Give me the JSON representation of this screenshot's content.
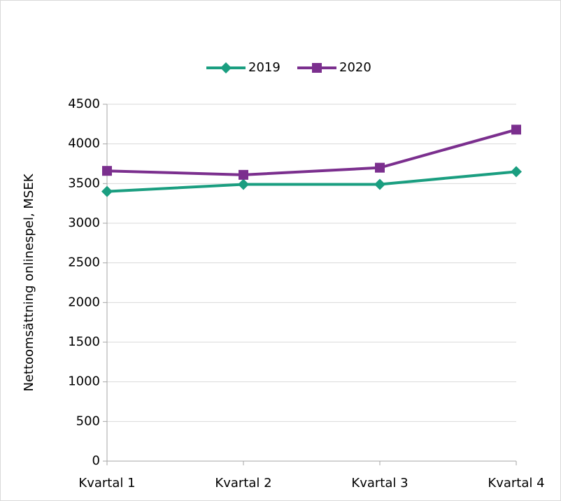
{
  "chart_data": {
    "type": "line",
    "categories": [
      "Kvartal 1",
      "Kvartal 2",
      "Kvartal 3",
      "Kvartal 4"
    ],
    "y_label": "Nettoomsättning onlinespel, MSEK",
    "series": [
      {
        "name": "2019",
        "color": "#1a9e80",
        "marker": "diamond",
        "values": [
          3400,
          3490,
          3490,
          3650
        ]
      },
      {
        "name": "2020",
        "color": "#7b2f8e",
        "marker": "square",
        "values": [
          3660,
          3610,
          3700,
          4180
        ]
      }
    ],
    "ylim": [
      0,
      4500
    ],
    "yticks": [
      0,
      500,
      1000,
      1500,
      2000,
      2500,
      3000,
      3500,
      4000,
      4500
    ],
    "grid": true,
    "legend": "top"
  }
}
